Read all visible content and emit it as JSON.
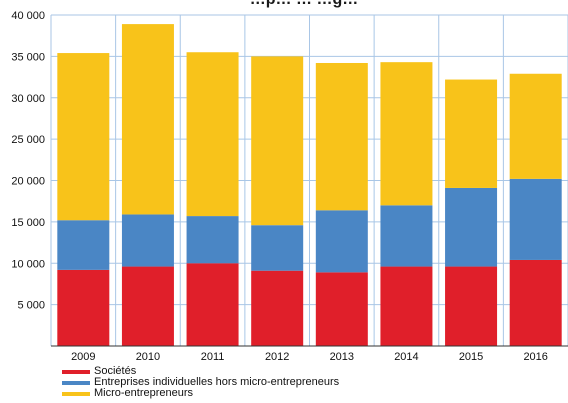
{
  "chart_data": {
    "type": "bar",
    "stacked": true,
    "title": "…p… … …g…",
    "categories": [
      "2009",
      "2010",
      "2011",
      "2012",
      "2013",
      "2014",
      "2015",
      "2016"
    ],
    "series": [
      {
        "name": "Sociétés",
        "color": "#e01f2a",
        "values": [
          9200,
          9600,
          10000,
          9100,
          8900,
          9600,
          9600,
          10400
        ]
      },
      {
        "name": "Entreprises individuelles hors micro-entrepreneurs",
        "color": "#4a86c5",
        "values": [
          6000,
          6300,
          5700,
          5500,
          7500,
          7400,
          9500,
          9800
        ]
      },
      {
        "name": "Micro-entrepreneurs",
        "color": "#f8c31a",
        "values": [
          20200,
          23000,
          19800,
          20400,
          17800,
          17300,
          13100,
          12700
        ]
      }
    ],
    "y_ticks": [
      5000,
      10000,
      15000,
      20000,
      25000,
      30000,
      35000,
      40000
    ],
    "y_tick_labels": [
      "5 000",
      "10 000",
      "15 000",
      "20 000",
      "25 000",
      "30 000",
      "35 000",
      "40 000"
    ],
    "ylim": [
      0,
      40000
    ],
    "grid": true,
    "legend_position": "bottom-left",
    "xlabel": "",
    "ylabel": ""
  }
}
